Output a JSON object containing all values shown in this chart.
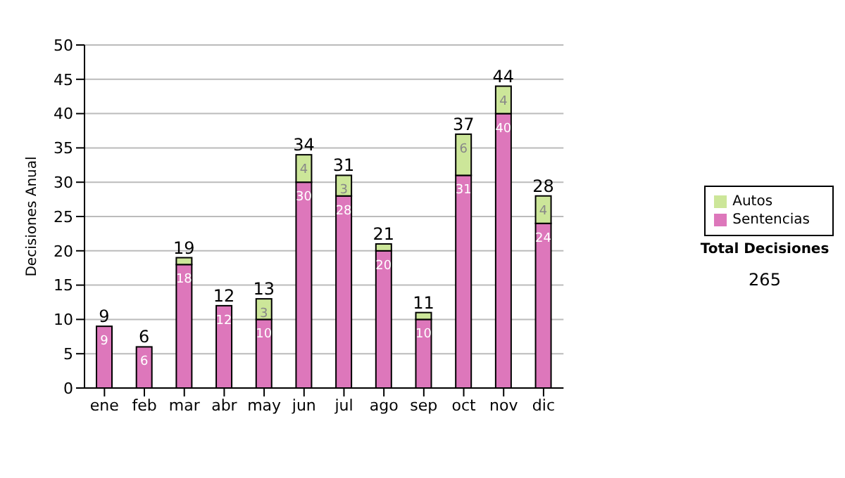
{
  "chart_data": {
    "type": "bar",
    "stacked": true,
    "ylabel": "Decisiones Anual",
    "categories": [
      "ene",
      "feb",
      "mar",
      "abr",
      "may",
      "jun",
      "jul",
      "ago",
      "sep",
      "oct",
      "nov",
      "dic"
    ],
    "series": [
      {
        "name": "Sentencias",
        "color": "#dd77bb",
        "values": [
          9,
          6,
          18,
          12,
          10,
          30,
          28,
          20,
          10,
          31,
          40,
          24
        ],
        "value_labels": [
          "9",
          "6",
          "18",
          "12",
          "10",
          "30",
          "28",
          "20",
          "10",
          "31",
          "40",
          "24"
        ]
      },
      {
        "name": "Autos",
        "color": "#cce699",
        "values": [
          0,
          0,
          1,
          0,
          3,
          4,
          3,
          1,
          1,
          6,
          4,
          4
        ],
        "value_labels": [
          null,
          null,
          null,
          null,
          "3",
          "4",
          "3",
          null,
          null,
          "6",
          "4",
          "4"
        ]
      }
    ],
    "totals": [
      "9",
      "6",
      "19",
      "12",
      "13",
      "34",
      "31",
      "21",
      "11",
      "37",
      "44",
      "28"
    ],
    "ylim": [
      0,
      50
    ],
    "yticks": [
      0,
      5,
      10,
      15,
      20,
      25,
      30,
      35,
      40,
      45,
      50
    ],
    "grid": "y",
    "legend": "right",
    "annotations": [
      "Total Decisiones",
      "265"
    ]
  }
}
